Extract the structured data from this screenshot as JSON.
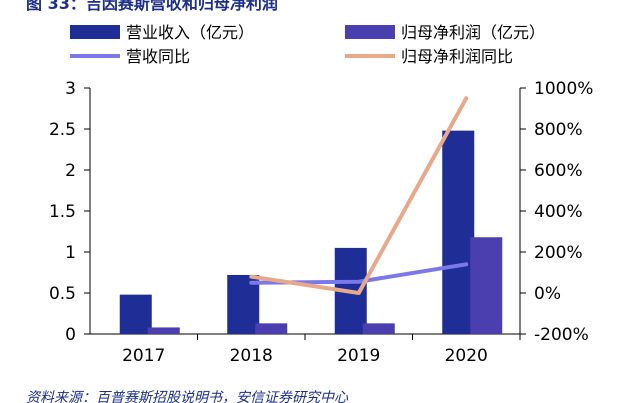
{
  "header": {
    "title": "图 33：吉因赛斯营收和归母净利润"
  },
  "footer": {
    "source": "资料来源：百普赛斯招股说明书，安信证券研究中心"
  },
  "chart_data": {
    "type": "bar",
    "categories": [
      "2017",
      "2018",
      "2019",
      "2020"
    ],
    "left_axis": {
      "ylim": [
        0,
        3
      ],
      "ticks": [
        "0",
        "0.5",
        "1",
        "1.5",
        "2",
        "2.5",
        "3"
      ]
    },
    "right_axis": {
      "ylim": [
        -200,
        1000
      ],
      "ticks": [
        "-200%",
        "0%",
        "200%",
        "400%",
        "600%",
        "800%",
        "1000%"
      ]
    },
    "bar_series": [
      {
        "name": "营业收入（亿元）",
        "color": "#1f2d96",
        "values": [
          0.48,
          0.72,
          1.05,
          2.48
        ]
      },
      {
        "name": "归母净利润（亿元）",
        "color": "#4b3fb0",
        "values": [
          0.08,
          0.13,
          0.13,
          1.18
        ]
      }
    ],
    "line_series": [
      {
        "name": "营收同比",
        "color": "#7b79ea",
        "values": [
          null,
          50,
          55,
          140
        ]
      },
      {
        "name": "归母净利润同比",
        "color": "#e8a98a",
        "values": [
          null,
          80,
          0,
          950
        ]
      }
    ],
    "legend_position": "top",
    "grid": false
  }
}
